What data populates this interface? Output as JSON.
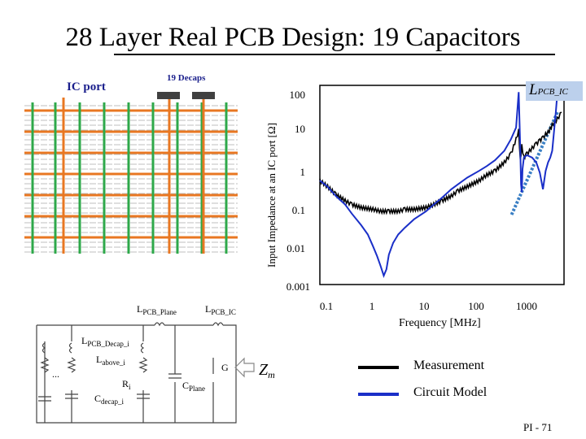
{
  "slide": {
    "title": "28 Layer Real PCB Design: 19 Capacitors",
    "page_number": "PI - 71"
  },
  "pcb_diagram": {
    "ic_port_label": "IC port",
    "decaps_label": "19 Decaps",
    "colors": {
      "orange": "#e87722",
      "green": "#2ea84a",
      "gray": "#bfbfbf",
      "decap": "#404040"
    }
  },
  "circuit": {
    "labels": {
      "pcb_plane": "L",
      "pcb_plane_sub": "PCB_Plane",
      "pcb_ic": "L",
      "pcb_ic_sub": "PCB_IC",
      "pcb_decap": "L",
      "pcb_decap_sub": "PCB_Decap_i",
      "above": "L",
      "above_sub": "above_i",
      "r": "R",
      "r_sub": "i",
      "cdecap": "C",
      "cdecap_sub": "decap_i",
      "cplane": "C",
      "cplane_sub": "Plane",
      "ellipsis": "...",
      "port_g": "G",
      "zm": "Z",
      "zm_sub": "m"
    }
  },
  "chart_data": {
    "type": "line",
    "title": "",
    "xlabel": "Frequency [MHz]",
    "ylabel": "Input Impedance at an IC port [Ω]",
    "xscale": "log",
    "yscale": "log",
    "xlim": [
      0.05,
      2000
    ],
    "ylim": [
      0.001,
      150
    ],
    "x_ticks": [
      "0.1",
      "1",
      "10",
      "100",
      "1000"
    ],
    "y_ticks": [
      "100",
      "10",
      "1",
      "0.1",
      "0.01",
      "0.001"
    ],
    "legend_position": "bottom",
    "annotation": {
      "text": "L",
      "sub": "PCB_IC"
    },
    "series": [
      {
        "name": "Measurement",
        "color": "#000000",
        "x": [
          0.05,
          0.07,
          0.1,
          0.15,
          0.2,
          0.3,
          0.5,
          0.7,
          1,
          1.5,
          2,
          3,
          5,
          7,
          10,
          15,
          20,
          30,
          50,
          70,
          100,
          150,
          200,
          250,
          280,
          300,
          320,
          350,
          400,
          500,
          600,
          700,
          800,
          900,
          1000,
          1100,
          1200,
          1500,
          1800
        ],
        "y": [
          0.5,
          0.35,
          0.22,
          0.15,
          0.12,
          0.1,
          0.09,
          0.08,
          0.08,
          0.08,
          0.09,
          0.09,
          0.1,
          0.12,
          0.15,
          0.2,
          0.27,
          0.35,
          0.5,
          0.7,
          0.9,
          1.5,
          2.5,
          6,
          10,
          1.6,
          4,
          2,
          2.5,
          3.5,
          4.5,
          5.5,
          6.5,
          8,
          9,
          11,
          14,
          20,
          30
        ]
      },
      {
        "name": "Circuit Model",
        "color": "#1a2fc8",
        "x": [
          0.05,
          0.07,
          0.1,
          0.15,
          0.2,
          0.3,
          0.4,
          0.5,
          0.6,
          0.7,
          0.8,
          0.9,
          1,
          1.2,
          1.5,
          2,
          3,
          5,
          7,
          10,
          15,
          20,
          30,
          50,
          70,
          100,
          150,
          200,
          250,
          280,
          300,
          310,
          320,
          330,
          350,
          400,
          500,
          600,
          700,
          800,
          900,
          1000,
          1100,
          1200,
          1300,
          1400,
          1500
        ],
        "y": [
          0.5,
          0.35,
          0.2,
          0.12,
          0.07,
          0.035,
          0.02,
          0.01,
          0.0055,
          0.003,
          0.0017,
          0.0025,
          0.006,
          0.012,
          0.02,
          0.03,
          0.05,
          0.08,
          0.12,
          0.18,
          0.3,
          0.4,
          0.6,
          0.9,
          1.2,
          1.7,
          3,
          6,
          12,
          100,
          3,
          0.4,
          0.25,
          1,
          2,
          2.3,
          2,
          1.5,
          0.8,
          0.3,
          0.9,
          1.5,
          2,
          3,
          10,
          30,
          100
        ]
      },
      {
        "name": "",
        "color": "#3a7fc4",
        "style": "dotted",
        "x": [
          1500,
          200
        ],
        "y": [
          30,
          0.06
        ]
      }
    ]
  }
}
